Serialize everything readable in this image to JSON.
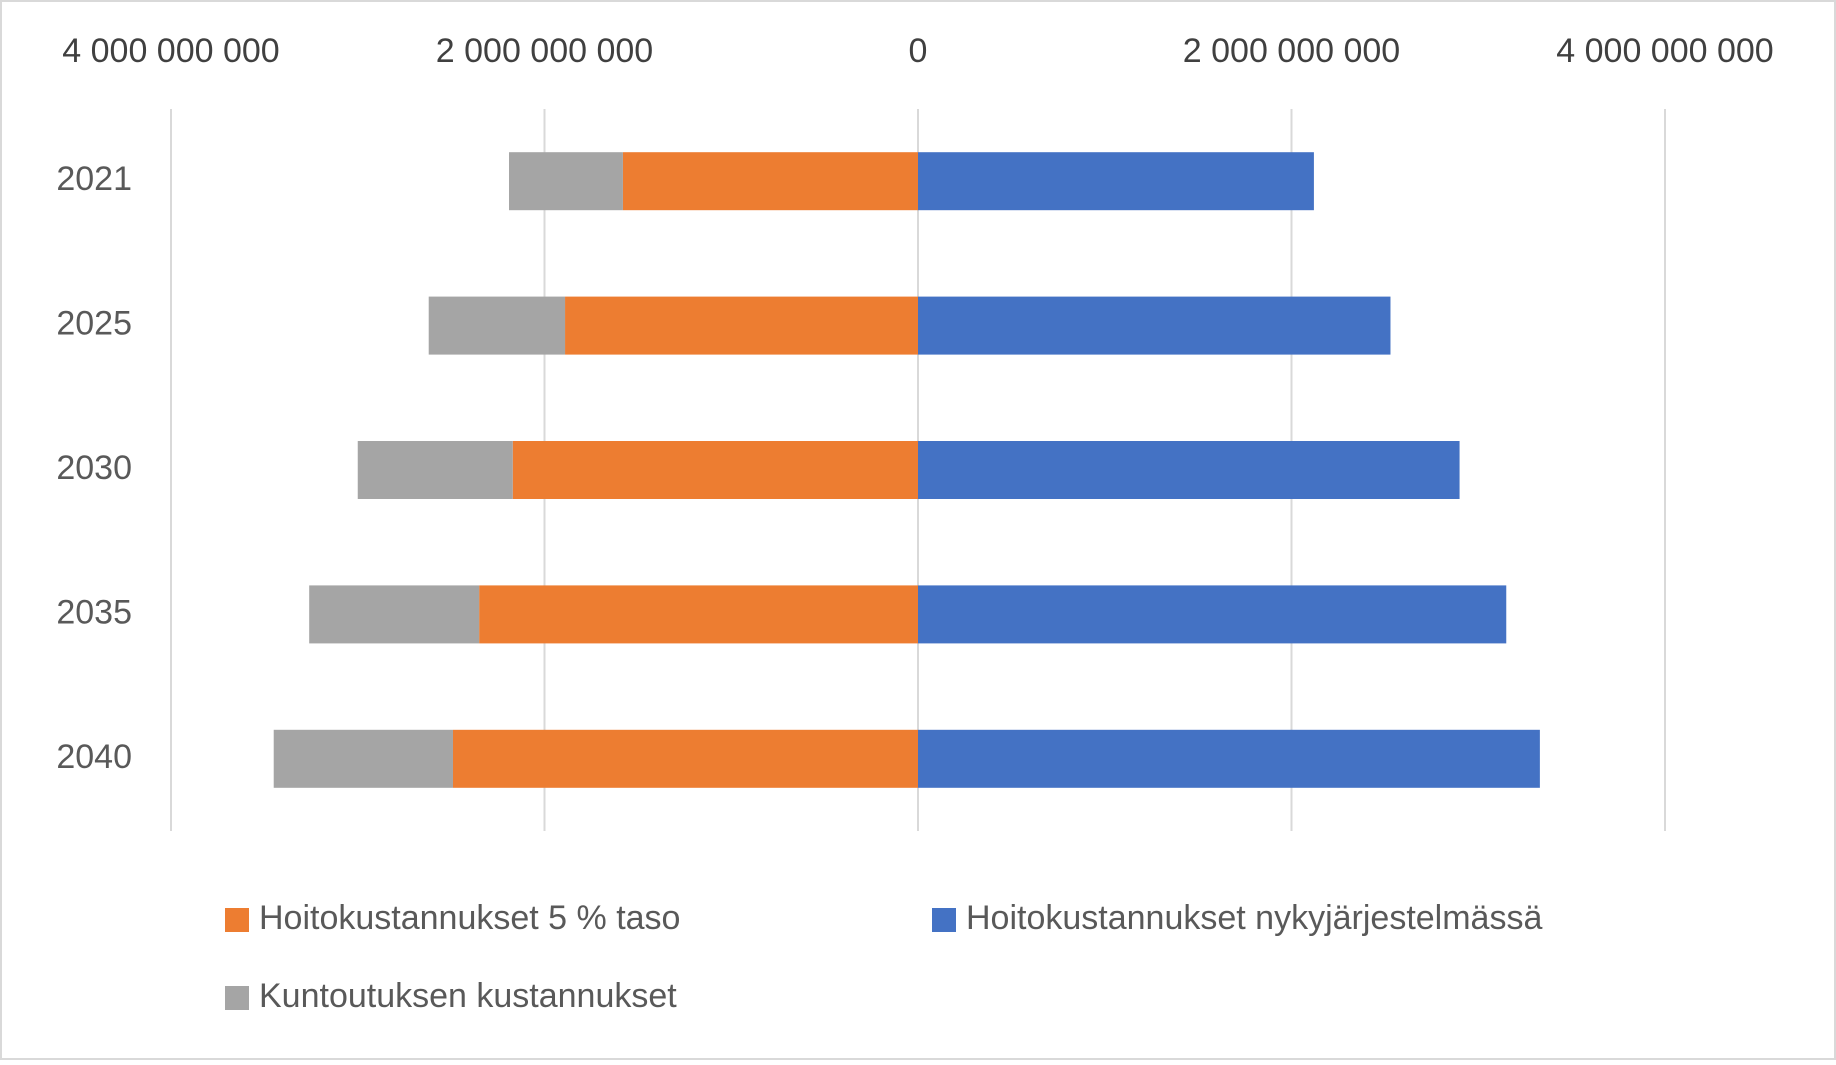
{
  "chart_data": {
    "type": "bar",
    "orientation": "horizontal",
    "stacked": true,
    "categories": [
      "2021",
      "2025",
      "2030",
      "2035",
      "2040"
    ],
    "series": [
      {
        "name": "Hoitokustannukset 5 % taso",
        "color": "#ed7d31",
        "values": [
          -1580000000,
          -1890000000,
          -2170000000,
          -2350000000,
          -2490000000
        ]
      },
      {
        "name": "Hoitokustannukset nykyjärjestelmässä",
        "color": "#4472c4",
        "values": [
          2120000000,
          2530000000,
          2900000000,
          3150000000,
          3330000000
        ]
      },
      {
        "name": "Kuntoutuksen kustannukset",
        "color": "#a5a5a5",
        "values": [
          -610000000,
          -730000000,
          -830000000,
          -910000000,
          -960000000
        ]
      }
    ],
    "xlim": [
      -4000000000,
      4000000000
    ],
    "xticks": [
      {
        "value": -4000000000,
        "label": "4 000 000 000"
      },
      {
        "value": -2000000000,
        "label": "2 000 000 000"
      },
      0,
      {
        "value": 2000000000,
        "label": "2 000 000 000"
      },
      {
        "value": 4000000000,
        "label": "4 000 000 000"
      }
    ],
    "grid": true,
    "legend": "bottom"
  }
}
